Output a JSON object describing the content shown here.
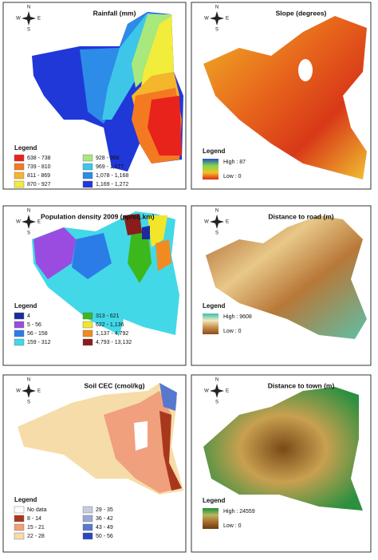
{
  "legend_title": "Legend",
  "compass": [
    "N",
    "E",
    "S",
    "W"
  ],
  "panels": [
    {
      "title": "Rainfall (mm)",
      "legend": {
        "items": [
          {
            "label": "638 - 738",
            "color": "#e8231c"
          },
          {
            "label": "928 - 968",
            "color": "#a8e87c"
          },
          {
            "label": "739 - 810",
            "color": "#f47a22"
          },
          {
            "label": "969 - 1,077",
            "color": "#3ec6e8"
          },
          {
            "label": "811 - 869",
            "color": "#f4b62a"
          },
          {
            "label": "1,078 - 1,168",
            "color": "#2c8ce8"
          },
          {
            "label": "870 - 927",
            "color": "#f2ec3a"
          },
          {
            "label": "1,169 - 1,272",
            "color": "#2038d8"
          }
        ]
      }
    },
    {
      "title": "Slope (degrees)",
      "legend": {
        "high": "High : 87",
        "low": "Low : 0",
        "colors": [
          "#2a4cc8",
          "#7ed84a",
          "#f2c02a",
          "#e02818"
        ]
      }
    },
    {
      "title": "Population density 2009 (pp/sq.km)",
      "legend": {
        "items": [
          {
            "label": "4",
            "color": "#1c2c9c"
          },
          {
            "label": "313 - 621",
            "color": "#3cb81c"
          },
          {
            "label": "5 - 56",
            "color": "#9a4ce0"
          },
          {
            "label": "622 - 1,136",
            "color": "#f2e62a"
          },
          {
            "label": "56 - 158",
            "color": "#2c7ce8"
          },
          {
            "label": "1,137 - 4,792",
            "color": "#f28a22"
          },
          {
            "label": "159 - 312",
            "color": "#42d8e8"
          },
          {
            "label": "4,793 - 13,132",
            "color": "#8a1c1c"
          }
        ]
      }
    },
    {
      "title": "Distance to road (m)",
      "legend": {
        "high": "High : 9608",
        "low": "Low : 0",
        "colors": [
          "#38c0b0",
          "#f2e8c0",
          "#c89048",
          "#8a4a1c"
        ]
      }
    },
    {
      "title": "Soil CEC (cmol/kg)",
      "legend": {
        "items": [
          {
            "label": "No data",
            "color": "#ffffff"
          },
          {
            "label": "29 - 35",
            "color": "#c8cce0"
          },
          {
            "label": "8 - 14",
            "color": "#a8381c"
          },
          {
            "label": "36 - 42",
            "color": "#9aa8d8"
          },
          {
            "label": "15 - 21",
            "color": "#f0a07c"
          },
          {
            "label": "43 - 49",
            "color": "#5878d0"
          },
          {
            "label": "22 - 28",
            "color": "#f6dca8"
          },
          {
            "label": "50 - 56",
            "color": "#2c48c0"
          }
        ]
      }
    },
    {
      "title": "Distance to town (m)",
      "legend": {
        "high": "High : 24559",
        "low": "Low : 0",
        "colors": [
          "#1c8c3c",
          "#b8b860",
          "#a86c2c",
          "#6a3c10"
        ]
      }
    }
  ]
}
